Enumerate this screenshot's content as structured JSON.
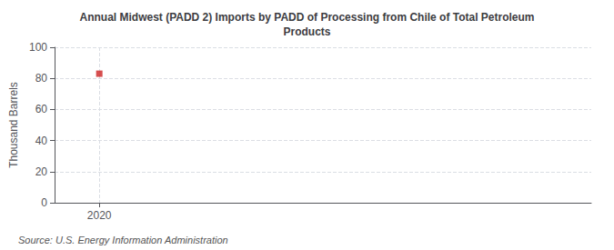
{
  "chart_data": {
    "type": "scatter",
    "title": "Annual Midwest (PADD 2) Imports by PADD of Processing from Chile of Total Petroleum\nProducts",
    "ylabel": "Thousand Barrels",
    "annotations": [
      "Source: U.S. Energy Information Administration"
    ],
    "x": [
      2020
    ],
    "values": [
      83
    ],
    "color": "#cc2222",
    "marker": "square",
    "xlim": [
      2019.5,
      2025.5
    ],
    "xticks": [
      2020
    ],
    "ylim": [
      0,
      100
    ],
    "yticks": [
      0,
      20,
      40,
      60,
      80,
      100
    ],
    "grid": true
  }
}
